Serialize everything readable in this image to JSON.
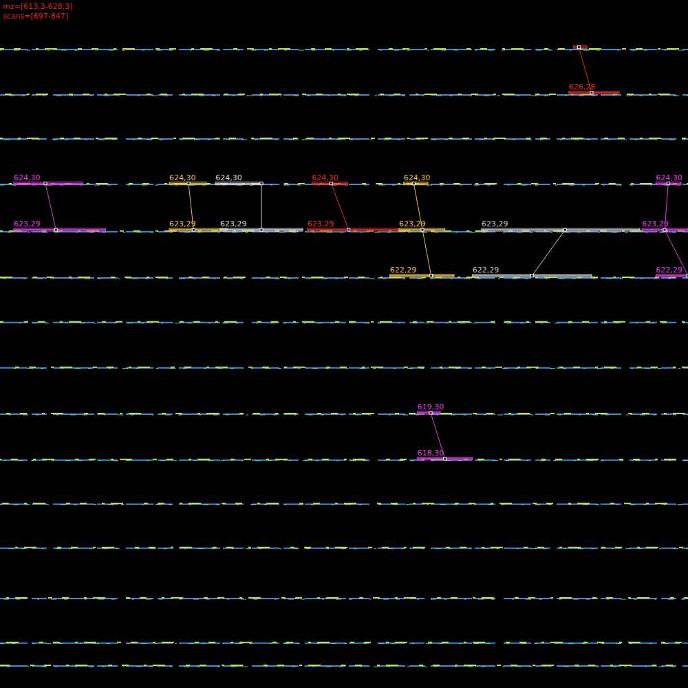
{
  "chart_data": {
    "type": "ms_map",
    "title": "mz=[613,3-628,3]",
    "subtitle": "scans=[697-847]",
    "xlim": [
      697,
      847
    ],
    "ylim": [
      613.3,
      628.3
    ],
    "tick_labels": false,
    "traces": [
      627.22,
      626.23,
      625.27,
      624.28,
      623.25,
      622.24,
      621.27,
      620.28,
      619.27,
      618.27,
      617.31,
      616.35,
      615.25,
      614.28,
      613.78
    ],
    "features": [
      {
        "color": "#e040e0",
        "peaks": [
          {
            "label": "624,30",
            "mz": 624.3,
            "scan_start": 700,
            "scan_end": 715,
            "apex": 706.9
          },
          {
            "label": "623,29",
            "mz": 623.29,
            "scan_start": 700,
            "scan_end": 720,
            "apex": 709.2
          }
        ]
      },
      {
        "color": "#e8c050",
        "peaks": [
          {
            "label": "624,30",
            "mz": 624.3,
            "scan_start": 733.9,
            "scan_end": 742,
            "apex": 738.1
          },
          {
            "label": "623,29",
            "mz": 623.29,
            "scan_start": 733.9,
            "scan_end": 746.5,
            "apex": 739.2
          }
        ]
      },
      {
        "color": "#d8d8d8",
        "peaks": [
          {
            "label": "624,30",
            "mz": 624.3,
            "scan_start": 744,
            "scan_end": 754,
            "apex": 754
          },
          {
            "label": "623,29",
            "mz": 623.29,
            "scan_start": 745,
            "scan_end": 763,
            "apex": 754
          }
        ]
      },
      {
        "color": "#e03020",
        "peaks": [
          {
            "label": "624,30",
            "mz": 624.3,
            "scan_start": 765,
            "scan_end": 772.8,
            "apex": 769.2
          },
          {
            "label": "623,29",
            "mz": 623.29,
            "scan_start": 764,
            "scan_end": 784,
            "apex": 773
          }
        ]
      },
      {
        "color": "#f0c040",
        "peaks": [
          {
            "label": "624,30",
            "mz": 624.3,
            "scan_start": 785,
            "scan_end": 790.3,
            "apex": 787.2
          },
          {
            "label": "623,29",
            "mz": 623.29,
            "scan_start": 784,
            "scan_end": 794,
            "apex": 789.1
          },
          {
            "label": "622,29",
            "mz": 622.29,
            "scan_start": 782,
            "scan_end": 796,
            "apex": 791
          }
        ]
      },
      {
        "color": "#c8c8c8",
        "peaks": [
          {
            "label": "623,29",
            "mz": 623.29,
            "scan_start": 802,
            "scan_end": 836.5,
            "apex": 820.2
          },
          {
            "label": "622,29",
            "mz": 622.29,
            "scan_start": 800,
            "scan_end": 826,
            "apex": 813
          }
        ]
      },
      {
        "color": "#e040e0",
        "peaks": [
          {
            "label": "624,30",
            "mz": 624.3,
            "scan_start": 840,
            "scan_end": 845.5,
            "apex": 842.7
          },
          {
            "label": "623,29",
            "mz": 623.29,
            "scan_start": 837,
            "scan_end": 847,
            "apex": 841.9
          },
          {
            "label": "622,29",
            "mz": 622.29,
            "scan_start": 840,
            "scan_end": 847,
            "apex": 847
          }
        ]
      },
      {
        "color": "#e03020",
        "peaks": [
          {
            "label": null,
            "mz": 627.27,
            "scan_start": 822,
            "scan_end": 825,
            "apex": 823.2
          },
          {
            "label": "626,28",
            "mz": 626.28,
            "scan_start": 821,
            "scan_end": 832,
            "apex": 826
          }
        ]
      },
      {
        "color": "#e040e0",
        "peaks": [
          {
            "label": "619,30",
            "mz": 619.3,
            "scan_start": 788,
            "scan_end": 793,
            "apex": 790.9
          },
          {
            "label": "618,30",
            "mz": 618.3,
            "scan_start": 788,
            "scan_end": 800,
            "apex": 794
          }
        ]
      }
    ]
  }
}
